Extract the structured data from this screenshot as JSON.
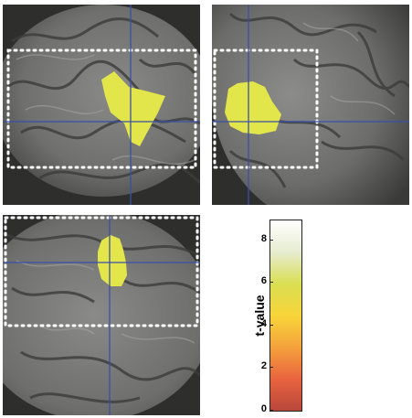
{
  "figure": {
    "panels": [
      {
        "id": "sagittal",
        "view": "sagittal",
        "activation_color": "#e2e64a",
        "crosshair_color": "#3a4fa8",
        "roi_box_style": "dotted-white"
      },
      {
        "id": "coronal",
        "view": "coronal",
        "activation_color": "#e2e64a",
        "crosshair_color": "#3a4fa8",
        "roi_box_style": "dotted-white"
      },
      {
        "id": "axial",
        "view": "axial",
        "activation_color": "#e2e64a",
        "crosshair_color": "#3a4fa8",
        "roi_box_style": "dotted-white"
      }
    ],
    "colorbar": {
      "label": "t-value",
      "ticks": [
        "0",
        "2",
        "4",
        "6",
        "8"
      ],
      "range": [
        0,
        9
      ],
      "colors": [
        "#b9473b",
        "#e9643f",
        "#f4a23c",
        "#f8d53a",
        "#d9de52",
        "#e6ecd0",
        "#ffffff"
      ]
    }
  }
}
